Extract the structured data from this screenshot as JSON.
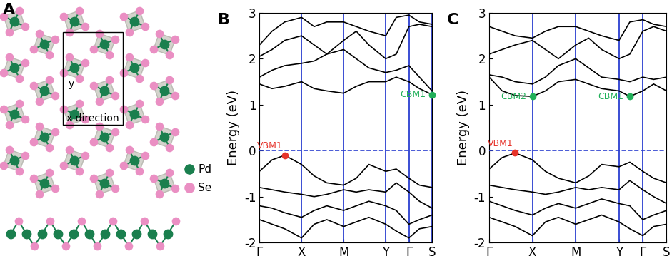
{
  "structure": {
    "panel_label": "A",
    "axis_labels": [
      "y",
      "x direction"
    ],
    "legend": [
      {
        "name": "Pd",
        "color": "#1a7f4e"
      },
      {
        "name": "Se",
        "color": "#ea8fc3"
      }
    ]
  },
  "chart_data": [
    {
      "type": "line",
      "panel_label": "B",
      "y_label": "Energy (eV)",
      "grid": true,
      "x": [
        0,
        0.3,
        0.6,
        1.0,
        1.3,
        1.6,
        2.0,
        2.3,
        2.6,
        3.0,
        3.25,
        3.55,
        3.8,
        4.1
      ],
      "xlim": [
        0,
        4.1
      ],
      "xticks": [
        {
          "value": 0,
          "label": "Γ"
        },
        {
          "value": 1,
          "label": "X"
        },
        {
          "value": 2,
          "label": "M"
        },
        {
          "value": 3,
          "label": "Y"
        },
        {
          "value": 3.55,
          "label": "Γ"
        },
        {
          "value": 4.1,
          "label": "S"
        }
      ],
      "ylim": [
        -2,
        3
      ],
      "yticks": [
        -2,
        -1,
        0,
        1,
        2,
        3
      ],
      "series": [
        {
          "color": "#000000",
          "values": [
            -0.45,
            -0.2,
            -0.1,
            -0.3,
            -0.55,
            -0.7,
            -0.75,
            -0.6,
            -0.3,
            -0.45,
            -0.4,
            -0.6,
            -0.75,
            -0.8
          ]
        },
        {
          "color": "#000000",
          "values": [
            -0.8,
            -0.85,
            -0.9,
            -0.95,
            -1.0,
            -0.95,
            -0.85,
            -0.9,
            -0.85,
            -0.9,
            -0.7,
            -0.9,
            -1.1,
            -1.25
          ]
        },
        {
          "color": "#000000",
          "values": [
            -1.2,
            -1.25,
            -1.35,
            -1.45,
            -1.3,
            -1.2,
            -1.3,
            -1.2,
            -1.1,
            -1.2,
            -1.3,
            -1.6,
            -1.5,
            -1.4
          ]
        },
        {
          "color": "#000000",
          "values": [
            -1.5,
            -1.6,
            -1.7,
            -1.9,
            -1.6,
            -1.5,
            -1.65,
            -1.55,
            -1.45,
            -1.6,
            -1.75,
            -1.9,
            -1.7,
            -1.65
          ]
        },
        {
          "color": "#000000",
          "values": [
            1.45,
            1.35,
            1.4,
            1.5,
            1.35,
            1.3,
            1.25,
            1.4,
            1.5,
            1.5,
            1.6,
            1.5,
            1.35,
            1.22
          ]
        },
        {
          "color": "#000000",
          "values": [
            1.6,
            1.75,
            1.85,
            1.9,
            1.95,
            2.1,
            2.2,
            2.0,
            1.8,
            1.7,
            1.75,
            1.85,
            1.6,
            1.3
          ]
        },
        {
          "color": "#000000",
          "values": [
            2.05,
            2.2,
            2.4,
            2.5,
            2.3,
            2.1,
            2.4,
            2.6,
            2.3,
            2.0,
            2.1,
            2.7,
            2.75,
            2.7
          ]
        },
        {
          "color": "#000000",
          "values": [
            2.3,
            2.6,
            2.8,
            2.9,
            2.7,
            2.8,
            2.8,
            2.7,
            2.6,
            2.5,
            2.9,
            2.95,
            2.8,
            2.75
          ]
        },
        {
          "color": "#2b3fd0",
          "line_style": "dashed",
          "values": [
            0,
            0,
            0,
            0,
            0,
            0,
            0,
            0,
            0,
            0,
            0,
            0,
            0,
            0
          ]
        }
      ],
      "annotations": [
        {
          "text": "VBM1",
          "x": 0.6,
          "y": -0.1,
          "color": "#e6332a"
        },
        {
          "text": "CBM1",
          "x": 4.1,
          "y": 1.22,
          "color": "#22b05a"
        }
      ]
    },
    {
      "type": "line",
      "panel_label": "C",
      "y_label": "Energy (eV)",
      "grid": true,
      "x": [
        0,
        0.3,
        0.6,
        1.0,
        1.3,
        1.6,
        2.0,
        2.3,
        2.6,
        3.0,
        3.25,
        3.55,
        3.8,
        4.1
      ],
      "xlim": [
        0,
        4.1
      ],
      "xticks": [
        {
          "value": 0,
          "label": "Γ"
        },
        {
          "value": 1,
          "label": "X"
        },
        {
          "value": 2,
          "label": "M"
        },
        {
          "value": 3,
          "label": "Y"
        },
        {
          "value": 3.55,
          "label": "Γ"
        },
        {
          "value": 4.1,
          "label": "S"
        }
      ],
      "ylim": [
        -2,
        3
      ],
      "yticks": [
        -2,
        -1,
        0,
        1,
        2,
        3
      ],
      "series": [
        {
          "color": "#000000",
          "values": [
            -0.4,
            -0.15,
            -0.05,
            -0.2,
            -0.45,
            -0.6,
            -0.7,
            -0.55,
            -0.3,
            -0.35,
            -0.25,
            -0.45,
            -0.6,
            -0.7
          ]
        },
        {
          "color": "#000000",
          "values": [
            -0.75,
            -0.8,
            -0.85,
            -0.9,
            -0.95,
            -0.9,
            -0.8,
            -0.85,
            -0.8,
            -0.85,
            -0.65,
            -0.85,
            -1.0,
            -1.15
          ]
        },
        {
          "color": "#000000",
          "values": [
            -1.1,
            -1.2,
            -1.3,
            -1.4,
            -1.25,
            -1.15,
            -1.25,
            -1.15,
            -1.05,
            -1.15,
            -1.2,
            -1.5,
            -1.4,
            -1.3
          ]
        },
        {
          "color": "#000000",
          "values": [
            -1.45,
            -1.55,
            -1.65,
            -1.85,
            -1.55,
            -1.45,
            -1.6,
            -1.5,
            -1.4,
            -1.55,
            -1.7,
            -1.85,
            -1.65,
            -1.6
          ]
        },
        {
          "color": "#000000",
          "values": [
            1.6,
            1.3,
            1.2,
            1.18,
            1.3,
            1.5,
            1.55,
            1.45,
            1.35,
            1.3,
            1.18,
            1.3,
            1.45,
            1.3
          ]
        },
        {
          "color": "#000000",
          "values": [
            1.65,
            1.6,
            1.5,
            1.45,
            1.6,
            1.85,
            2.0,
            1.8,
            1.6,
            1.55,
            1.5,
            1.6,
            1.55,
            1.6
          ]
        },
        {
          "color": "#000000",
          "values": [
            2.1,
            2.2,
            2.3,
            2.4,
            2.2,
            2.0,
            2.3,
            2.45,
            2.2,
            2.0,
            2.1,
            2.6,
            2.7,
            2.6
          ]
        },
        {
          "color": "#000000",
          "values": [
            2.7,
            2.6,
            2.5,
            2.45,
            2.6,
            2.7,
            2.7,
            2.6,
            2.5,
            2.4,
            2.8,
            2.85,
            2.75,
            2.7
          ]
        },
        {
          "color": "#2b3fd0",
          "line_style": "dashed",
          "values": [
            0,
            0,
            0,
            0,
            0,
            0,
            0,
            0,
            0,
            0,
            0,
            0,
            0,
            0
          ]
        }
      ],
      "annotations": [
        {
          "text": "VBM1",
          "x": 0.6,
          "y": -0.05,
          "color": "#e6332a"
        },
        {
          "text": "CBM2",
          "x": 1.0,
          "y": 1.18,
          "color": "#22b05a"
        },
        {
          "text": "CBM1",
          "x": 3.25,
          "y": 1.18,
          "color": "#22b05a"
        }
      ]
    }
  ]
}
